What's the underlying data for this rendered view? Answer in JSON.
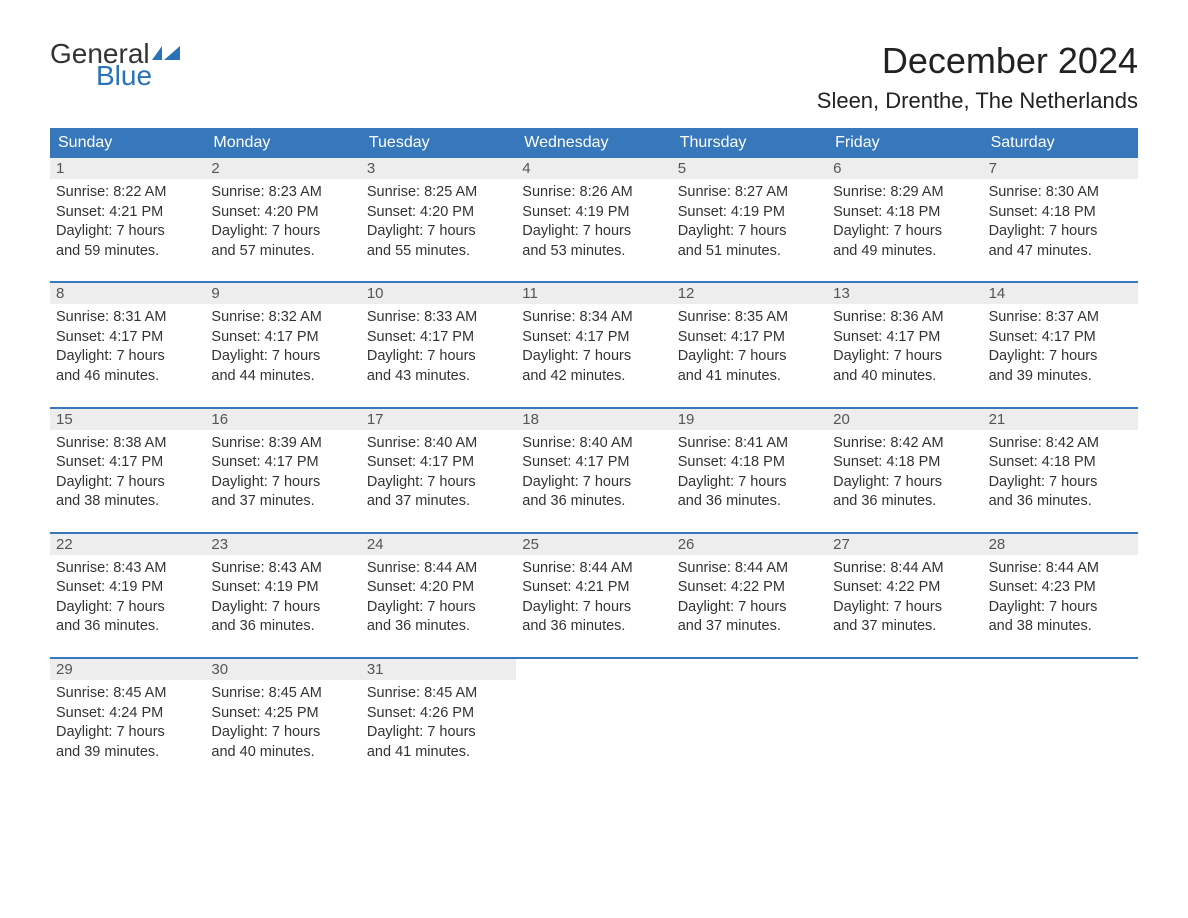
{
  "logo": {
    "text_general": "General",
    "text_blue": "Blue",
    "accent_color": "#2a73b8"
  },
  "title": "December 2024",
  "location": "Sleen, Drenthe, The Netherlands",
  "colors": {
    "header_bg": "#3778bd",
    "header_text": "#ffffff",
    "daynum_bg": "#ededed",
    "body_text": "#333333",
    "week_border": "#3778bd"
  },
  "weekdays": [
    "Sunday",
    "Monday",
    "Tuesday",
    "Wednesday",
    "Thursday",
    "Friday",
    "Saturday"
  ],
  "weeks": [
    [
      {
        "n": "1",
        "sunrise": "Sunrise: 8:22 AM",
        "sunset": "Sunset: 4:21 PM",
        "day1": "Daylight: 7 hours",
        "day2": "and 59 minutes."
      },
      {
        "n": "2",
        "sunrise": "Sunrise: 8:23 AM",
        "sunset": "Sunset: 4:20 PM",
        "day1": "Daylight: 7 hours",
        "day2": "and 57 minutes."
      },
      {
        "n": "3",
        "sunrise": "Sunrise: 8:25 AM",
        "sunset": "Sunset: 4:20 PM",
        "day1": "Daylight: 7 hours",
        "day2": "and 55 minutes."
      },
      {
        "n": "4",
        "sunrise": "Sunrise: 8:26 AM",
        "sunset": "Sunset: 4:19 PM",
        "day1": "Daylight: 7 hours",
        "day2": "and 53 minutes."
      },
      {
        "n": "5",
        "sunrise": "Sunrise: 8:27 AM",
        "sunset": "Sunset: 4:19 PM",
        "day1": "Daylight: 7 hours",
        "day2": "and 51 minutes."
      },
      {
        "n": "6",
        "sunrise": "Sunrise: 8:29 AM",
        "sunset": "Sunset: 4:18 PM",
        "day1": "Daylight: 7 hours",
        "day2": "and 49 minutes."
      },
      {
        "n": "7",
        "sunrise": "Sunrise: 8:30 AM",
        "sunset": "Sunset: 4:18 PM",
        "day1": "Daylight: 7 hours",
        "day2": "and 47 minutes."
      }
    ],
    [
      {
        "n": "8",
        "sunrise": "Sunrise: 8:31 AM",
        "sunset": "Sunset: 4:17 PM",
        "day1": "Daylight: 7 hours",
        "day2": "and 46 minutes."
      },
      {
        "n": "9",
        "sunrise": "Sunrise: 8:32 AM",
        "sunset": "Sunset: 4:17 PM",
        "day1": "Daylight: 7 hours",
        "day2": "and 44 minutes."
      },
      {
        "n": "10",
        "sunrise": "Sunrise: 8:33 AM",
        "sunset": "Sunset: 4:17 PM",
        "day1": "Daylight: 7 hours",
        "day2": "and 43 minutes."
      },
      {
        "n": "11",
        "sunrise": "Sunrise: 8:34 AM",
        "sunset": "Sunset: 4:17 PM",
        "day1": "Daylight: 7 hours",
        "day2": "and 42 minutes."
      },
      {
        "n": "12",
        "sunrise": "Sunrise: 8:35 AM",
        "sunset": "Sunset: 4:17 PM",
        "day1": "Daylight: 7 hours",
        "day2": "and 41 minutes."
      },
      {
        "n": "13",
        "sunrise": "Sunrise: 8:36 AM",
        "sunset": "Sunset: 4:17 PM",
        "day1": "Daylight: 7 hours",
        "day2": "and 40 minutes."
      },
      {
        "n": "14",
        "sunrise": "Sunrise: 8:37 AM",
        "sunset": "Sunset: 4:17 PM",
        "day1": "Daylight: 7 hours",
        "day2": "and 39 minutes."
      }
    ],
    [
      {
        "n": "15",
        "sunrise": "Sunrise: 8:38 AM",
        "sunset": "Sunset: 4:17 PM",
        "day1": "Daylight: 7 hours",
        "day2": "and 38 minutes."
      },
      {
        "n": "16",
        "sunrise": "Sunrise: 8:39 AM",
        "sunset": "Sunset: 4:17 PM",
        "day1": "Daylight: 7 hours",
        "day2": "and 37 minutes."
      },
      {
        "n": "17",
        "sunrise": "Sunrise: 8:40 AM",
        "sunset": "Sunset: 4:17 PM",
        "day1": "Daylight: 7 hours",
        "day2": "and 37 minutes."
      },
      {
        "n": "18",
        "sunrise": "Sunrise: 8:40 AM",
        "sunset": "Sunset: 4:17 PM",
        "day1": "Daylight: 7 hours",
        "day2": "and 36 minutes."
      },
      {
        "n": "19",
        "sunrise": "Sunrise: 8:41 AM",
        "sunset": "Sunset: 4:18 PM",
        "day1": "Daylight: 7 hours",
        "day2": "and 36 minutes."
      },
      {
        "n": "20",
        "sunrise": "Sunrise: 8:42 AM",
        "sunset": "Sunset: 4:18 PM",
        "day1": "Daylight: 7 hours",
        "day2": "and 36 minutes."
      },
      {
        "n": "21",
        "sunrise": "Sunrise: 8:42 AM",
        "sunset": "Sunset: 4:18 PM",
        "day1": "Daylight: 7 hours",
        "day2": "and 36 minutes."
      }
    ],
    [
      {
        "n": "22",
        "sunrise": "Sunrise: 8:43 AM",
        "sunset": "Sunset: 4:19 PM",
        "day1": "Daylight: 7 hours",
        "day2": "and 36 minutes."
      },
      {
        "n": "23",
        "sunrise": "Sunrise: 8:43 AM",
        "sunset": "Sunset: 4:19 PM",
        "day1": "Daylight: 7 hours",
        "day2": "and 36 minutes."
      },
      {
        "n": "24",
        "sunrise": "Sunrise: 8:44 AM",
        "sunset": "Sunset: 4:20 PM",
        "day1": "Daylight: 7 hours",
        "day2": "and 36 minutes."
      },
      {
        "n": "25",
        "sunrise": "Sunrise: 8:44 AM",
        "sunset": "Sunset: 4:21 PM",
        "day1": "Daylight: 7 hours",
        "day2": "and 36 minutes."
      },
      {
        "n": "26",
        "sunrise": "Sunrise: 8:44 AM",
        "sunset": "Sunset: 4:22 PM",
        "day1": "Daylight: 7 hours",
        "day2": "and 37 minutes."
      },
      {
        "n": "27",
        "sunrise": "Sunrise: 8:44 AM",
        "sunset": "Sunset: 4:22 PM",
        "day1": "Daylight: 7 hours",
        "day2": "and 37 minutes."
      },
      {
        "n": "28",
        "sunrise": "Sunrise: 8:44 AM",
        "sunset": "Sunset: 4:23 PM",
        "day1": "Daylight: 7 hours",
        "day2": "and 38 minutes."
      }
    ],
    [
      {
        "n": "29",
        "sunrise": "Sunrise: 8:45 AM",
        "sunset": "Sunset: 4:24 PM",
        "day1": "Daylight: 7 hours",
        "day2": "and 39 minutes."
      },
      {
        "n": "30",
        "sunrise": "Sunrise: 8:45 AM",
        "sunset": "Sunset: 4:25 PM",
        "day1": "Daylight: 7 hours",
        "day2": "and 40 minutes."
      },
      {
        "n": "31",
        "sunrise": "Sunrise: 8:45 AM",
        "sunset": "Sunset: 4:26 PM",
        "day1": "Daylight: 7 hours",
        "day2": "and 41 minutes."
      },
      null,
      null,
      null,
      null
    ]
  ]
}
